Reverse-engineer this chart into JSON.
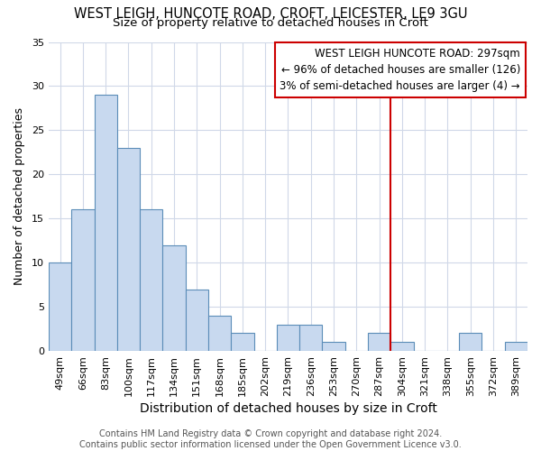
{
  "title": "WEST LEIGH, HUNCOTE ROAD, CROFT, LEICESTER, LE9 3GU",
  "subtitle": "Size of property relative to detached houses in Croft",
  "xlabel": "Distribution of detached houses by size in Croft",
  "ylabel": "Number of detached properties",
  "bar_color": "#c8d9ef",
  "bar_edge_color": "#5b8db8",
  "categories": [
    "49sqm",
    "66sqm",
    "83sqm",
    "100sqm",
    "117sqm",
    "134sqm",
    "151sqm",
    "168sqm",
    "185sqm",
    "202sqm",
    "219sqm",
    "236sqm",
    "253sqm",
    "270sqm",
    "287sqm",
    "304sqm",
    "321sqm",
    "338sqm",
    "355sqm",
    "372sqm",
    "389sqm"
  ],
  "values": [
    10,
    16,
    29,
    23,
    16,
    12,
    7,
    4,
    2,
    0,
    3,
    3,
    1,
    0,
    2,
    1,
    0,
    0,
    2,
    0,
    1
  ],
  "ylim": [
    0,
    35
  ],
  "yticks": [
    0,
    5,
    10,
    15,
    20,
    25,
    30,
    35
  ],
  "vline_x": 14.5,
  "vline_color": "#cc0000",
  "annotation_line1": "WEST LEIGH HUNCOTE ROAD: 297sqm",
  "annotation_line2": "← 96% of detached houses are smaller (126)",
  "annotation_line3": "3% of semi-detached houses are larger (4) →",
  "annotation_box_color": "#cc0000",
  "bg_color": "#ffffff",
  "plot_bg_color": "#ffffff",
  "grid_color": "#d0d8e8",
  "title_fontsize": 10.5,
  "subtitle_fontsize": 9.5,
  "xlabel_fontsize": 10,
  "ylabel_fontsize": 9,
  "tick_fontsize": 8,
  "annotation_fontsize": 8.5,
  "footer_fontsize": 7,
  "footer_line1": "Contains HM Land Registry data © Crown copyright and database right 2024.",
  "footer_line2": "Contains public sector information licensed under the Open Government Licence v3.0."
}
